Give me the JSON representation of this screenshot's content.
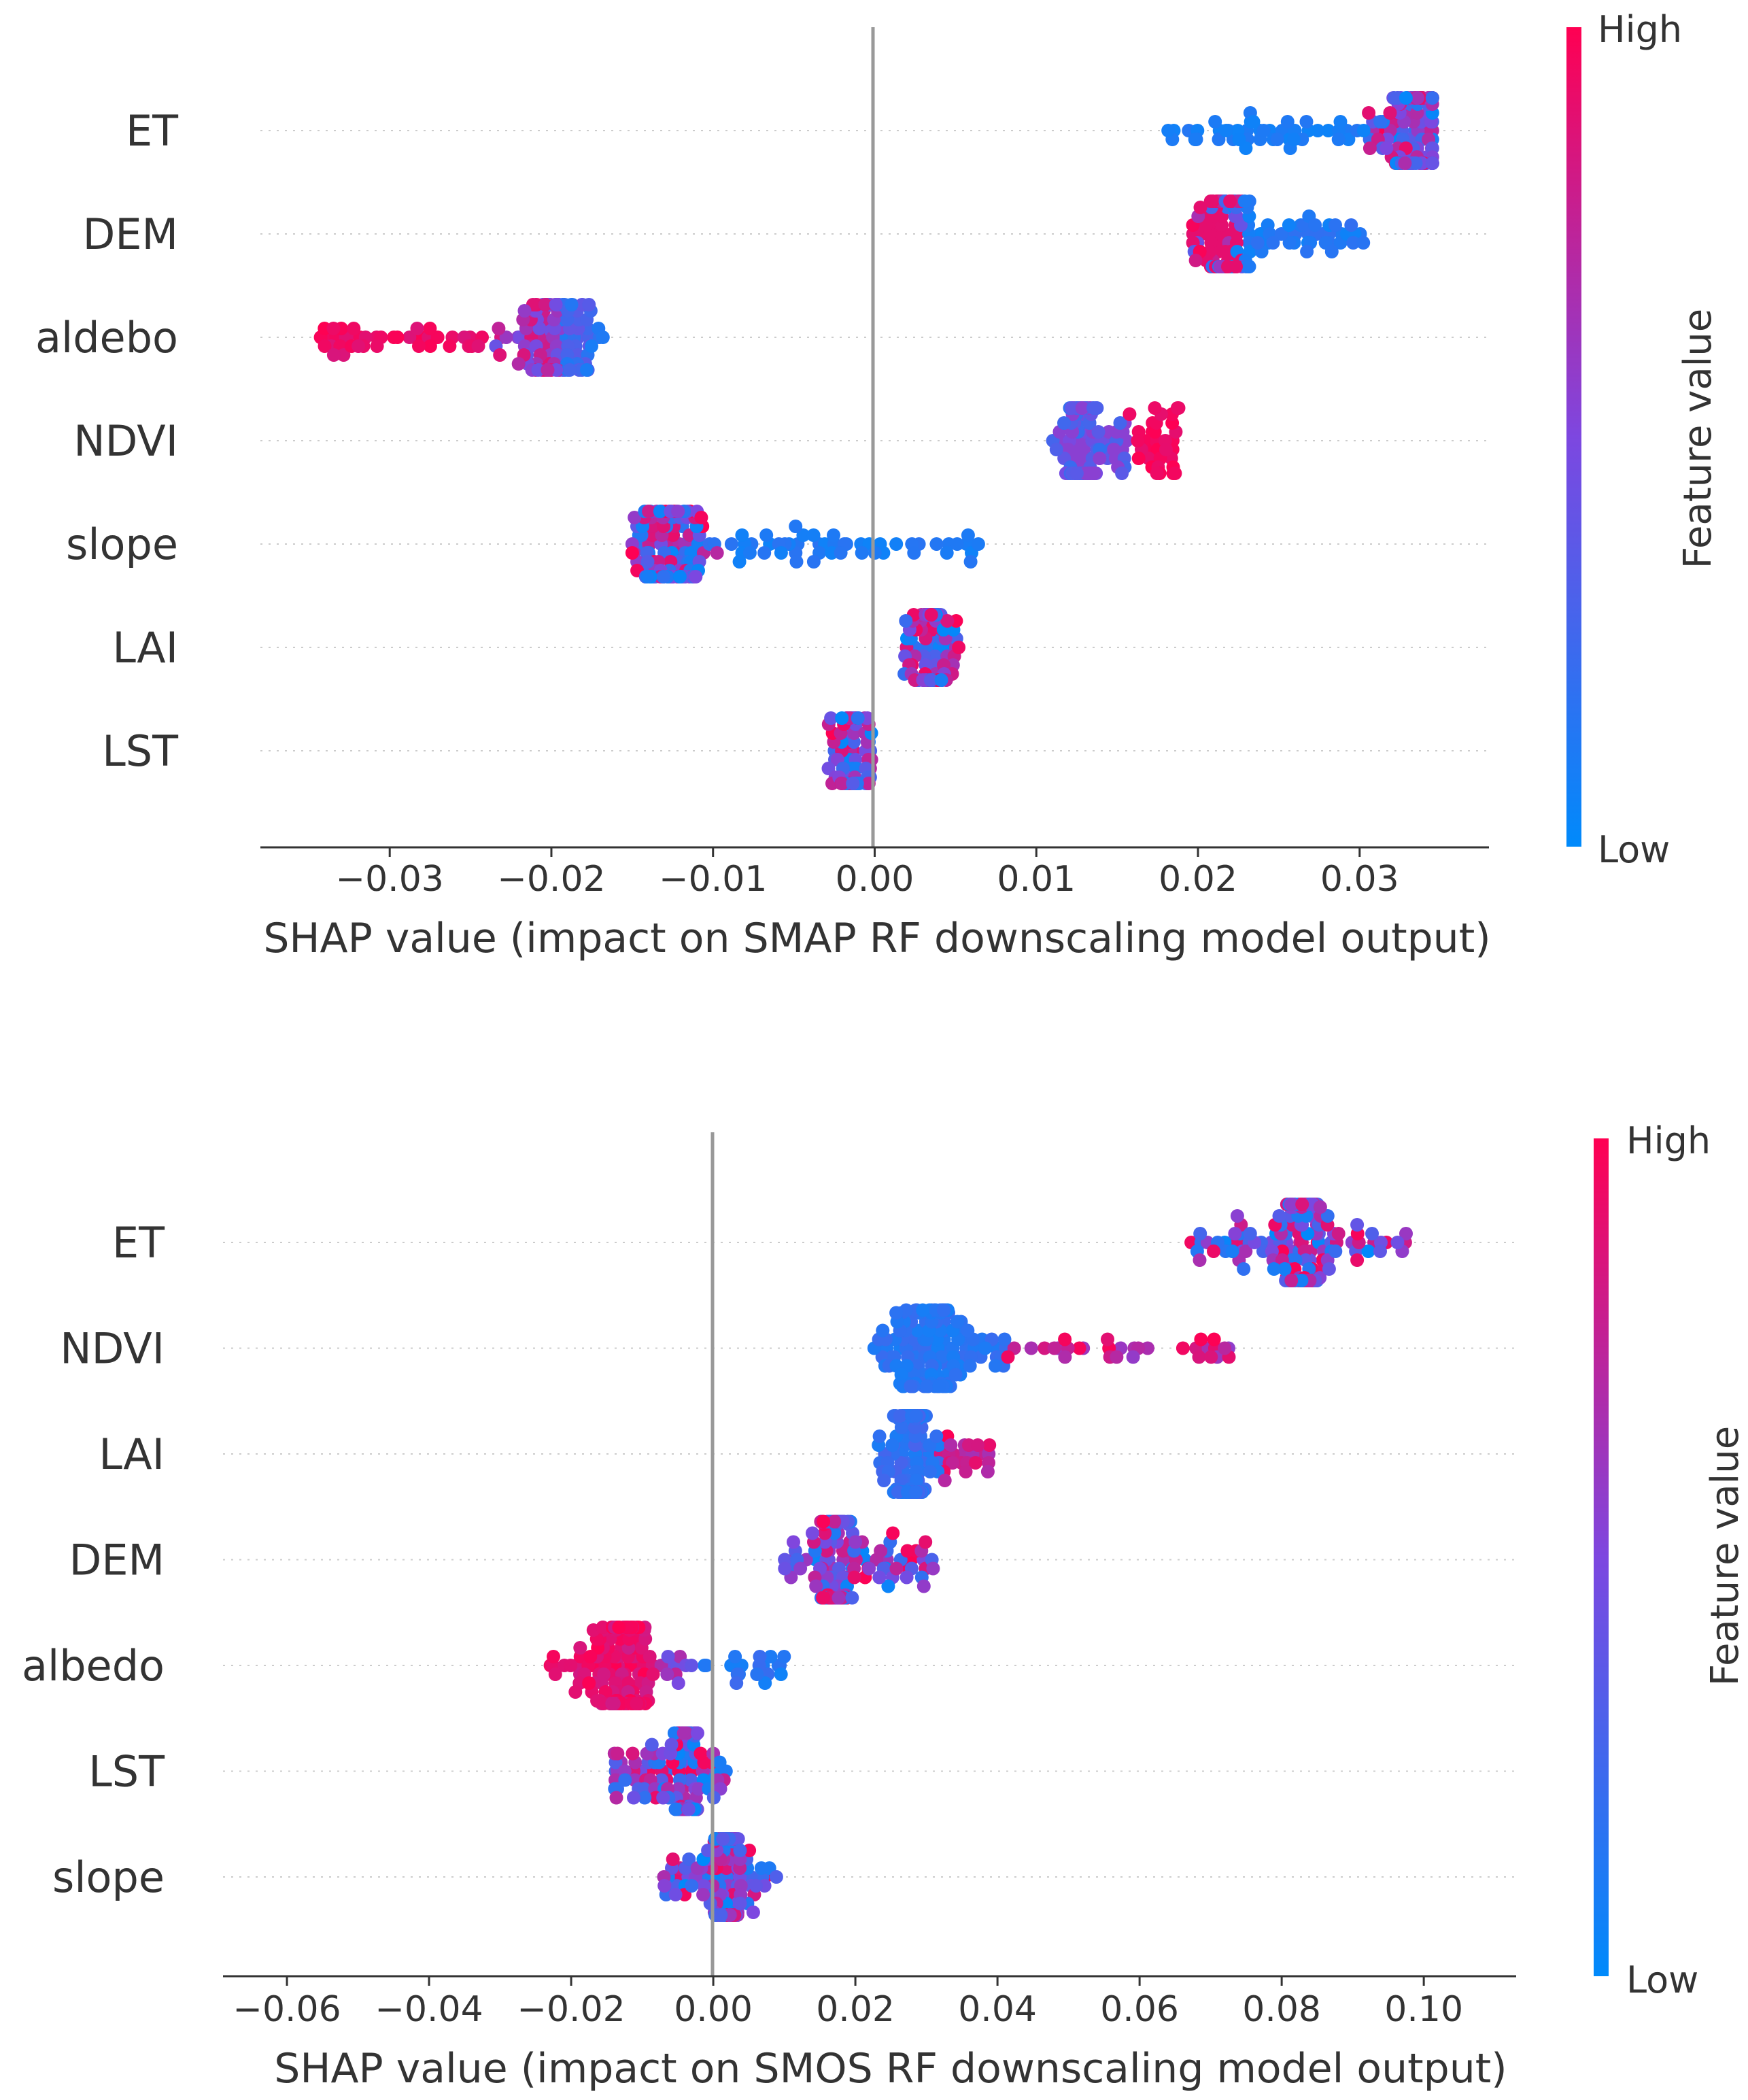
{
  "colorbar": {
    "high_label": "High",
    "low_label": "Low",
    "title": "Feature value",
    "high_color": "#ff0052",
    "low_color": "#008afb"
  },
  "chart_data": [
    {
      "type": "scatter",
      "subtype": "shap-beeswarm",
      "title": "",
      "xlabel": "SHAP value (impact on SMAP RF downscaling model output)",
      "xlim": [
        -0.038,
        0.038
      ],
      "xticks": [
        -0.03,
        -0.02,
        -0.01,
        0.0,
        0.01,
        0.02,
        0.03
      ],
      "xtick_labels": [
        "−0.03",
        "−0.02",
        "−0.01",
        "0.00",
        "0.01",
        "0.02",
        "0.03"
      ],
      "features": [
        {
          "name": "ET",
          "min": 0.018,
          "max": 0.0345,
          "center": 0.0333,
          "mode": "tailLow"
        },
        {
          "name": "DEM",
          "min": 0.0196,
          "max": 0.0305,
          "center": 0.0218,
          "mode": "tailHighLow"
        },
        {
          "name": "aldebo",
          "min": -0.0345,
          "max": -0.0168,
          "center": -0.0198,
          "mode": "tailLeftHigh"
        },
        {
          "name": "NDVI",
          "min": 0.011,
          "max": 0.0188,
          "center": 0.0128,
          "mode": "tailRightHigh"
        },
        {
          "name": "slope",
          "min": -0.015,
          "max": 0.0065,
          "center": -0.0128,
          "mode": "tailRightLow"
        },
        {
          "name": "LAI",
          "min": 0.0018,
          "max": 0.0052,
          "center": 0.0035,
          "mode": "compact"
        },
        {
          "name": "LST",
          "min": -0.003,
          "max": -0.0001,
          "center": -0.0014,
          "mode": "compact"
        }
      ]
    },
    {
      "type": "scatter",
      "subtype": "shap-beeswarm",
      "title": "",
      "xlabel": "SHAP value (impact on SMOS RF downscaling model output)",
      "xlim": [
        -0.069,
        0.113
      ],
      "xticks": [
        -0.06,
        -0.04,
        -0.02,
        0.0,
        0.02,
        0.04,
        0.06,
        0.08,
        0.1
      ],
      "xtick_labels": [
        "−0.06",
        "−0.04",
        "−0.02",
        "0.00",
        "0.02",
        "0.04",
        "0.06",
        "0.08",
        "0.10"
      ],
      "features": [
        {
          "name": "ET",
          "min": 0.067,
          "max": 0.098,
          "center": 0.083,
          "mode": "mixed"
        },
        {
          "name": "NDVI",
          "min": 0.022,
          "max": 0.073,
          "center": 0.031,
          "mode": "ndviSmos"
        },
        {
          "name": "LAI",
          "min": 0.023,
          "max": 0.039,
          "center": 0.028,
          "mode": "laiSmos"
        },
        {
          "name": "DEM",
          "min": 0.01,
          "max": 0.031,
          "center": 0.017,
          "mode": "mixed"
        },
        {
          "name": "albedo",
          "min": -0.023,
          "max": 0.01,
          "center": -0.013,
          "mode": "albedoSmos"
        },
        {
          "name": "LST",
          "min": -0.014,
          "max": 0.002,
          "center": -0.004,
          "mode": "mixed"
        },
        {
          "name": "slope",
          "min": -0.007,
          "max": 0.009,
          "center": 0.002,
          "mode": "mixed"
        }
      ]
    }
  ]
}
